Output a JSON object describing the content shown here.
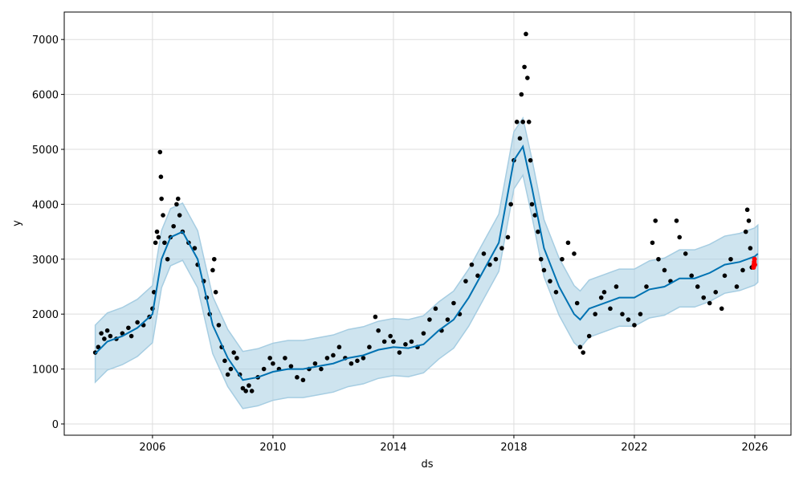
{
  "chart_data": {
    "type": "line",
    "title": "",
    "xlabel": "ds",
    "ylabel": "y",
    "xlim": [
      2003.07,
      2027.2
    ],
    "ylim": [
      -205,
      7500
    ],
    "grid": true,
    "x_ticks": [
      2006,
      2010,
      2014,
      2018,
      2022,
      2026
    ],
    "x_tick_labels": [
      "2006",
      "2010",
      "2014",
      "2018",
      "2022",
      "2026"
    ],
    "y_ticks": [
      0,
      1000,
      2000,
      3000,
      4000,
      5000,
      6000,
      7000
    ],
    "y_tick_labels": [
      "0",
      "1000",
      "2000",
      "3000",
      "4000",
      "5000",
      "6000",
      "7000"
    ],
    "colors": {
      "forecast": "#0072B2",
      "band": "#a6cde2",
      "observed": "#000000",
      "future": "#ff0000",
      "grid": "#dddddd"
    },
    "forecast": [
      [
        2004.1,
        1280
      ],
      [
        2004.5,
        1500
      ],
      [
        2005,
        1600
      ],
      [
        2005.5,
        1750
      ],
      [
        2006,
        2000
      ],
      [
        2006.3,
        3000
      ],
      [
        2006.6,
        3400
      ],
      [
        2007,
        3500
      ],
      [
        2007.5,
        3000
      ],
      [
        2008,
        1800
      ],
      [
        2008.5,
        1200
      ],
      [
        2009,
        800
      ],
      [
        2009.5,
        850
      ],
      [
        2010,
        950
      ],
      [
        2010.5,
        1000
      ],
      [
        2011,
        1000
      ],
      [
        2011.5,
        1050
      ],
      [
        2012,
        1100
      ],
      [
        2012.5,
        1200
      ],
      [
        2013,
        1250
      ],
      [
        2013.5,
        1350
      ],
      [
        2014,
        1400
      ],
      [
        2014.5,
        1380
      ],
      [
        2015,
        1450
      ],
      [
        2015.5,
        1700
      ],
      [
        2016,
        1900
      ],
      [
        2016.5,
        2300
      ],
      [
        2017,
        2800
      ],
      [
        2017.5,
        3300
      ],
      [
        2018,
        4800
      ],
      [
        2018.3,
        5050
      ],
      [
        2018.6,
        4300
      ],
      [
        2019,
        3200
      ],
      [
        2019.5,
        2500
      ],
      [
        2020,
        2000
      ],
      [
        2020.2,
        1900
      ],
      [
        2020.5,
        2100
      ],
      [
        2021,
        2200
      ],
      [
        2021.5,
        2300
      ],
      [
        2022,
        2300
      ],
      [
        2022.5,
        2450
      ],
      [
        2023,
        2500
      ],
      [
        2023.5,
        2650
      ],
      [
        2024,
        2650
      ],
      [
        2024.5,
        2750
      ],
      [
        2025,
        2900
      ],
      [
        2025.5,
        2950
      ],
      [
        2026,
        3050
      ],
      [
        2026.1,
        3100
      ]
    ],
    "band_halfwidth": 520,
    "observed": [
      [
        2004.1,
        1300
      ],
      [
        2004.2,
        1400
      ],
      [
        2004.3,
        1650
      ],
      [
        2004.4,
        1550
      ],
      [
        2004.5,
        1700
      ],
      [
        2004.6,
        1600
      ],
      [
        2004.8,
        1550
      ],
      [
        2005.0,
        1650
      ],
      [
        2005.2,
        1750
      ],
      [
        2005.3,
        1600
      ],
      [
        2005.5,
        1850
      ],
      [
        2005.7,
        1800
      ],
      [
        2005.9,
        1950
      ],
      [
        2006.0,
        2100
      ],
      [
        2006.05,
        2400
      ],
      [
        2006.1,
        3300
      ],
      [
        2006.15,
        3500
      ],
      [
        2006.2,
        3400
      ],
      [
        2006.25,
        4950
      ],
      [
        2006.28,
        4500
      ],
      [
        2006.3,
        4100
      ],
      [
        2006.35,
        3800
      ],
      [
        2006.4,
        3300
      ],
      [
        2006.5,
        3000
      ],
      [
        2006.6,
        3400
      ],
      [
        2006.7,
        3600
      ],
      [
        2006.8,
        4000
      ],
      [
        2006.85,
        4100
      ],
      [
        2006.9,
        3800
      ],
      [
        2007.0,
        3500
      ],
      [
        2007.2,
        3300
      ],
      [
        2007.4,
        3200
      ],
      [
        2007.5,
        2900
      ],
      [
        2007.7,
        2600
      ],
      [
        2007.8,
        2300
      ],
      [
        2007.9,
        2000
      ],
      [
        2008.0,
        2800
      ],
      [
        2008.05,
        3000
      ],
      [
        2008.1,
        2400
      ],
      [
        2008.2,
        1800
      ],
      [
        2008.3,
        1400
      ],
      [
        2008.4,
        1150
      ],
      [
        2008.5,
        900
      ],
      [
        2008.6,
        1000
      ],
      [
        2008.7,
        1300
      ],
      [
        2008.8,
        1200
      ],
      [
        2008.9,
        900
      ],
      [
        2009.0,
        650
      ],
      [
        2009.1,
        600
      ],
      [
        2009.2,
        700
      ],
      [
        2009.3,
        600
      ],
      [
        2009.5,
        850
      ],
      [
        2009.7,
        1000
      ],
      [
        2009.9,
        1200
      ],
      [
        2010.0,
        1100
      ],
      [
        2010.2,
        1000
      ],
      [
        2010.4,
        1200
      ],
      [
        2010.6,
        1050
      ],
      [
        2010.8,
        850
      ],
      [
        2011.0,
        800
      ],
      [
        2011.2,
        1000
      ],
      [
        2011.4,
        1100
      ],
      [
        2011.6,
        1000
      ],
      [
        2011.8,
        1200
      ],
      [
        2012.0,
        1250
      ],
      [
        2012.2,
        1400
      ],
      [
        2012.4,
        1200
      ],
      [
        2012.6,
        1100
      ],
      [
        2012.8,
        1150
      ],
      [
        2013.0,
        1200
      ],
      [
        2013.2,
        1400
      ],
      [
        2013.4,
        1950
      ],
      [
        2013.5,
        1700
      ],
      [
        2013.7,
        1500
      ],
      [
        2013.9,
        1600
      ],
      [
        2014.0,
        1500
      ],
      [
        2014.2,
        1300
      ],
      [
        2014.4,
        1450
      ],
      [
        2014.6,
        1500
      ],
      [
        2014.8,
        1400
      ],
      [
        2015.0,
        1650
      ],
      [
        2015.2,
        1900
      ],
      [
        2015.4,
        2100
      ],
      [
        2015.6,
        1700
      ],
      [
        2015.8,
        1900
      ],
      [
        2016.0,
        2200
      ],
      [
        2016.2,
        2000
      ],
      [
        2016.4,
        2600
      ],
      [
        2016.6,
        2900
      ],
      [
        2016.8,
        2700
      ],
      [
        2017.0,
        3100
      ],
      [
        2017.2,
        2900
      ],
      [
        2017.4,
        3000
      ],
      [
        2017.6,
        3200
      ],
      [
        2017.8,
        3400
      ],
      [
        2017.9,
        4000
      ],
      [
        2018.0,
        4800
      ],
      [
        2018.1,
        5500
      ],
      [
        2018.2,
        5200
      ],
      [
        2018.25,
        6000
      ],
      [
        2018.3,
        5500
      ],
      [
        2018.35,
        6500
      ],
      [
        2018.4,
        7100
      ],
      [
        2018.45,
        6300
      ],
      [
        2018.5,
        5500
      ],
      [
        2018.55,
        4800
      ],
      [
        2018.6,
        4000
      ],
      [
        2018.7,
        3800
      ],
      [
        2018.8,
        3500
      ],
      [
        2018.9,
        3000
      ],
      [
        2019.0,
        2800
      ],
      [
        2019.2,
        2600
      ],
      [
        2019.4,
        2400
      ],
      [
        2019.6,
        3000
      ],
      [
        2019.8,
        3300
      ],
      [
        2020.0,
        3100
      ],
      [
        2020.1,
        2200
      ],
      [
        2020.2,
        1400
      ],
      [
        2020.3,
        1300
      ],
      [
        2020.5,
        1600
      ],
      [
        2020.7,
        2000
      ],
      [
        2020.9,
        2300
      ],
      [
        2021.0,
        2400
      ],
      [
        2021.2,
        2100
      ],
      [
        2021.4,
        2500
      ],
      [
        2021.6,
        2000
      ],
      [
        2021.8,
        1900
      ],
      [
        2022.0,
        1800
      ],
      [
        2022.2,
        2000
      ],
      [
        2022.4,
        2500
      ],
      [
        2022.6,
        3300
      ],
      [
        2022.7,
        3700
      ],
      [
        2022.8,
        3000
      ],
      [
        2023.0,
        2800
      ],
      [
        2023.2,
        2600
      ],
      [
        2023.4,
        3700
      ],
      [
        2023.5,
        3400
      ],
      [
        2023.7,
        3100
      ],
      [
        2023.9,
        2700
      ],
      [
        2024.1,
        2500
      ],
      [
        2024.3,
        2300
      ],
      [
        2024.5,
        2200
      ],
      [
        2024.7,
        2400
      ],
      [
        2024.9,
        2100
      ],
      [
        2025.0,
        2700
      ],
      [
        2025.2,
        3000
      ],
      [
        2025.4,
        2500
      ],
      [
        2025.6,
        2800
      ],
      [
        2025.7,
        3500
      ],
      [
        2025.75,
        3900
      ],
      [
        2025.8,
        3700
      ],
      [
        2025.85,
        3200
      ],
      [
        2025.9,
        2850
      ]
    ],
    "future_points": [
      [
        2025.96,
        2850
      ],
      [
        2025.97,
        2900
      ],
      [
        2025.98,
        2950
      ],
      [
        2025.99,
        3000
      ],
      [
        2026.0,
        2900
      ]
    ]
  }
}
